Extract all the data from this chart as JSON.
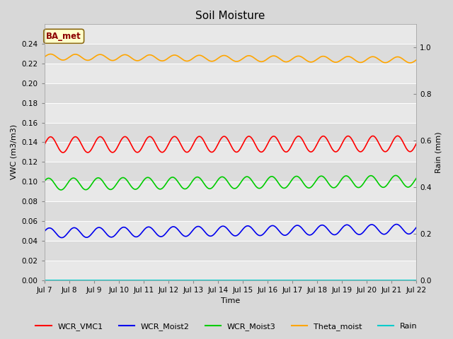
{
  "title": "Soil Moisture",
  "xlabel": "Time",
  "ylabel_left": "VWC (m3/m3)",
  "ylabel_right": "Rain (mm)",
  "ylim_left": [
    0.0,
    0.26
  ],
  "ylim_right": [
    0.0,
    1.1
  ],
  "yticks_left": [
    0.0,
    0.02,
    0.04,
    0.06,
    0.08,
    0.1,
    0.12,
    0.14,
    0.16,
    0.18,
    0.2,
    0.22,
    0.24
  ],
  "yticks_right": [
    0.0,
    0.2,
    0.4,
    0.6,
    0.8,
    1.0
  ],
  "xtick_labels": [
    "Jul 7",
    "Jul 8",
    "Jul 9",
    "Jul 10",
    "Jul 11",
    "Jul 12",
    "Jul 13",
    "Jul 14",
    "Jul 15",
    "Jul 16",
    "Jul 17",
    "Jul 18",
    "Jul 19",
    "Jul 20",
    "Jul 21",
    "Jul 22"
  ],
  "n_points": 2000,
  "series_order": [
    "WCR_VMC1",
    "WCR_Moist2",
    "WCR_Moist3",
    "Theta_moist",
    "Rain"
  ],
  "series": {
    "WCR_VMC1": {
      "color": "#ff0000",
      "mean": 0.138,
      "amplitude": 0.008,
      "freq_cycles": 15,
      "phase": 0.0,
      "trend": 0.001
    },
    "WCR_Moist2": {
      "color": "#0000ee",
      "mean": 0.05,
      "amplitude": 0.005,
      "freq_cycles": 15,
      "phase": 0.3,
      "trend": 0.004
    },
    "WCR_Moist3": {
      "color": "#00cc00",
      "mean": 0.099,
      "amplitude": 0.006,
      "freq_cycles": 15,
      "phase": 0.5,
      "trend": 0.003
    },
    "Theta_moist": {
      "color": "#ffa500",
      "mean": 0.225,
      "amplitude": 0.003,
      "freq_cycles": 15,
      "phase": 0.0,
      "trend": -0.003
    },
    "Rain": {
      "color": "#00cccc",
      "mean": 0.0,
      "amplitude": 0.0,
      "freq_cycles": 0,
      "phase": 0.0,
      "trend": 0.0
    }
  },
  "legend_series": [
    "WCR_VMC1",
    "WCR_Moist2",
    "WCR_Moist3",
    "Theta_moist",
    "Rain"
  ],
  "legend_colors": [
    "#ff0000",
    "#0000ee",
    "#00cc00",
    "#ffa500",
    "#00cccc"
  ],
  "annotation_text": "BA_met",
  "bg_color": "#d8d8d8",
  "plot_bg_light": "#e8e8e8",
  "plot_bg_dark": "#dcdcdc",
  "title_fontsize": 11,
  "axis_fontsize": 8,
  "tick_fontsize": 7.5,
  "legend_fontsize": 8,
  "linewidth": 1.2
}
